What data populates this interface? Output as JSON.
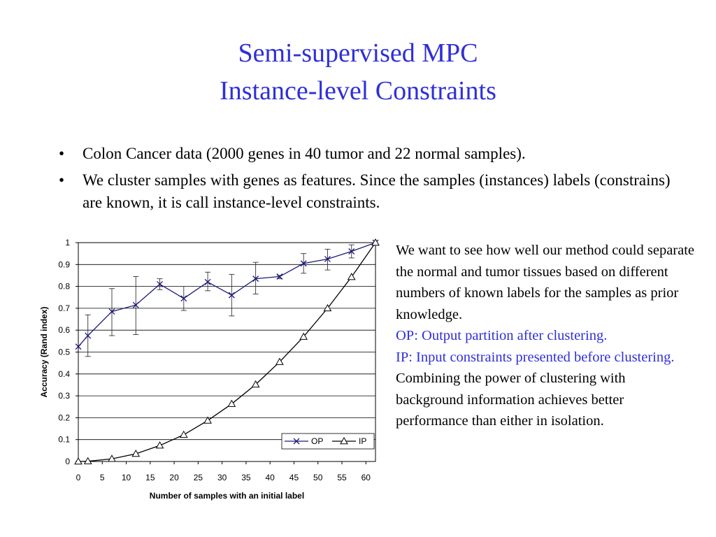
{
  "slide": {
    "title_line1": "Semi-supervised MPC",
    "title_line2": "Instance-level Constraints",
    "bullets": [
      "Colon Cancer data (2000 genes in 40 tumor and 22 normal samples).",
      "We cluster samples with genes as features. Since the samples (instances) labels (constrains) are known, it is call instance-level constraints."
    ],
    "bullet_char": "•",
    "side_text": {
      "intro": "We want to see how well our method could separate the normal and tumor tissues based on different numbers of known labels for the samples as prior knowledge.",
      "op_def": "OP: Output partition after clustering.",
      "ip_def": "IP: Input constraints presented before clustering.",
      "conclusion": "Combining the power of clustering with background information achieves better performance than either in isolation."
    },
    "accent_color": "#2f2fd8"
  },
  "chart_data": {
    "type": "line",
    "xlabel": "Number of samples with an initial label",
    "ylabel": "Accuracy (Rand index)",
    "xlim": [
      0,
      62
    ],
    "ylim": [
      0,
      1
    ],
    "xticks": [
      0,
      5,
      10,
      15,
      20,
      25,
      30,
      35,
      40,
      45,
      50,
      55,
      60
    ],
    "yticks": [
      0,
      0.1,
      0.2,
      0.3,
      0.4,
      0.5,
      0.6,
      0.7,
      0.8,
      0.9,
      1
    ],
    "grid": "horizontal",
    "legend_position": "bottom-right",
    "series": [
      {
        "name": "OP",
        "marker": "x",
        "color": "#1a1a7a",
        "x": [
          0,
          2,
          7,
          12,
          17,
          22,
          27,
          32,
          37,
          42,
          47,
          52,
          57,
          62
        ],
        "y": [
          0.525,
          0.575,
          0.685,
          0.715,
          0.81,
          0.745,
          0.82,
          0.76,
          0.835,
          0.845,
          0.905,
          0.925,
          0.96,
          1.0
        ],
        "err_low": [
          0.525,
          0.48,
          0.575,
          0.58,
          0.785,
          0.69,
          0.78,
          0.665,
          0.765,
          0.835,
          0.86,
          0.875,
          0.93,
          1.0
        ],
        "err_high": [
          0.525,
          0.67,
          0.79,
          0.845,
          0.835,
          0.8,
          0.865,
          0.855,
          0.91,
          0.85,
          0.95,
          0.97,
          0.99,
          1.0
        ]
      },
      {
        "name": "IP",
        "marker": "triangle",
        "color": "#000000",
        "x": [
          0,
          2,
          7,
          12,
          17,
          22,
          27,
          32,
          37,
          42,
          47,
          52,
          57,
          62
        ],
        "y": [
          0.0,
          0.001,
          0.012,
          0.035,
          0.073,
          0.122,
          0.187,
          0.263,
          0.352,
          0.455,
          0.57,
          0.7,
          0.843,
          1.0
        ]
      }
    ]
  }
}
